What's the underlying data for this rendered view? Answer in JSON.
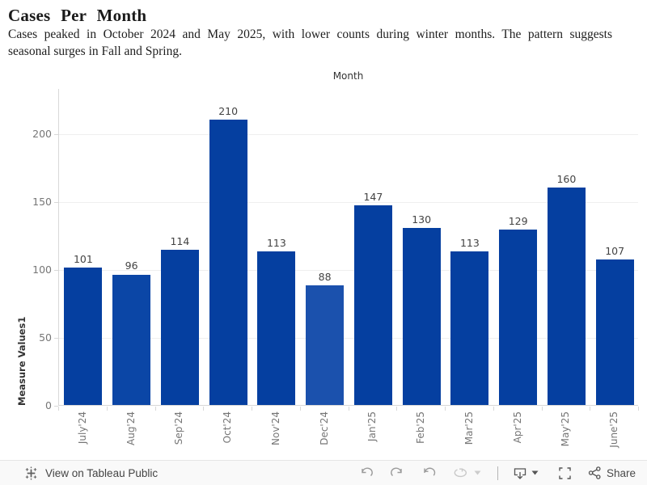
{
  "header": {
    "title": "Cases Per Month",
    "subtitle_lines": [
      "Cases peaked in October 2024 and May 2025, with lower counts during winter months. The pattern suggests",
      "seasonal surges in Fall and Spring."
    ]
  },
  "chart_data": {
    "type": "bar",
    "title": "Cases Per Month",
    "xlabel": "Month",
    "ylabel": "Measure Values1",
    "categories": [
      "July'24",
      "Aug'24",
      "Sep'24",
      "Oct'24",
      "Nov'24",
      "Dec'24",
      "Jan'25",
      "Feb'25",
      "Mar'25",
      "Apr'25",
      "May'25",
      "June'25"
    ],
    "values": [
      101,
      96,
      114,
      210,
      113,
      88,
      147,
      130,
      113,
      129,
      160,
      107
    ],
    "bar_colors": [
      "#053fa0",
      "#0b46a6",
      "#053fa0",
      "#053fa0",
      "#053fa0",
      "#1b51ad",
      "#053fa0",
      "#053fa0",
      "#053fa0",
      "#053fa0",
      "#053fa0",
      "#053fa0"
    ],
    "default_bar_color": "#053fa0",
    "yticks": [
      0,
      50,
      100,
      150,
      200
    ],
    "ylim": [
      0,
      233
    ],
    "grid": true,
    "legend_position": "none",
    "colors": {
      "gridline": "#efefef",
      "axis_line": "#d8d8d8",
      "tick_label": "#767676",
      "bar_value_label": "#434343",
      "axis_title": "#333333"
    }
  },
  "toolbar": {
    "view_label": "View on Tableau Public",
    "share_label": "Share",
    "icons": [
      "tableau-logo-icon",
      "undo-icon",
      "redo-icon",
      "revert-icon",
      "refresh-icon",
      "caret-down-icon",
      "download-icon",
      "caret-down-icon",
      "fullscreen-icon",
      "share-icon"
    ]
  },
  "colors": {
    "background": "#ffffff",
    "toolbar_bg": "#f9f9f9",
    "toolbar_border": "#e6e6e6",
    "accent_blue": "#053fa0"
  }
}
